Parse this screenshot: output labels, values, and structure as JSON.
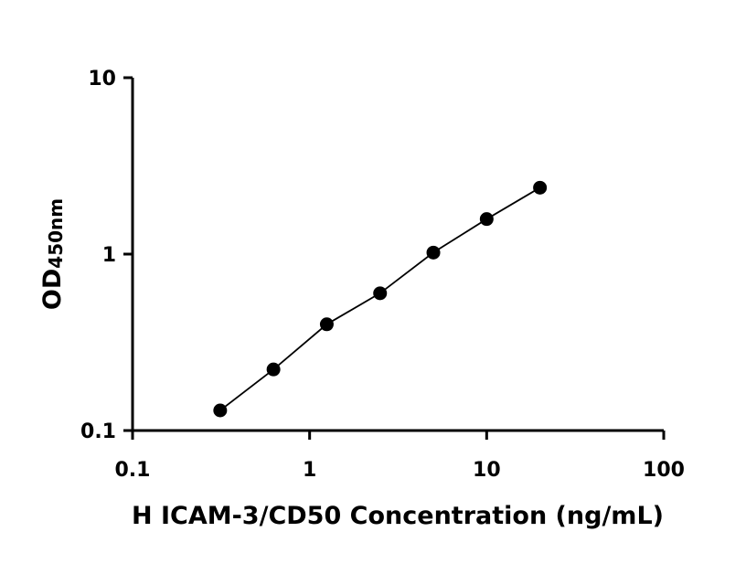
{
  "chart_data": {
    "type": "scatter",
    "title": "",
    "xlabel": "H ICAM-3/CD50 Concentration (ng/mL)",
    "ylabel_main": "OD",
    "ylabel_sub": "450nm",
    "xscale": "log",
    "yscale": "log",
    "xlim": [
      0.1,
      100
    ],
    "ylim": [
      0.1,
      10
    ],
    "x_ticks": [
      0.1,
      1,
      10,
      100
    ],
    "x_tick_labels": [
      "0.1",
      "1",
      "10",
      "100"
    ],
    "y_ticks": [
      0.1,
      1,
      10
    ],
    "y_tick_labels": [
      "0.1",
      "1",
      "10"
    ],
    "grid": false,
    "legend": "none",
    "series": [
      {
        "x": [
          0.3125,
          0.625,
          1.25,
          2.5,
          5,
          10,
          20
        ],
        "y": [
          0.13,
          0.222,
          0.4,
          0.6,
          1.02,
          1.58,
          2.38
        ],
        "marker": "circle",
        "color": "#000000",
        "fit_line": true
      }
    ]
  }
}
